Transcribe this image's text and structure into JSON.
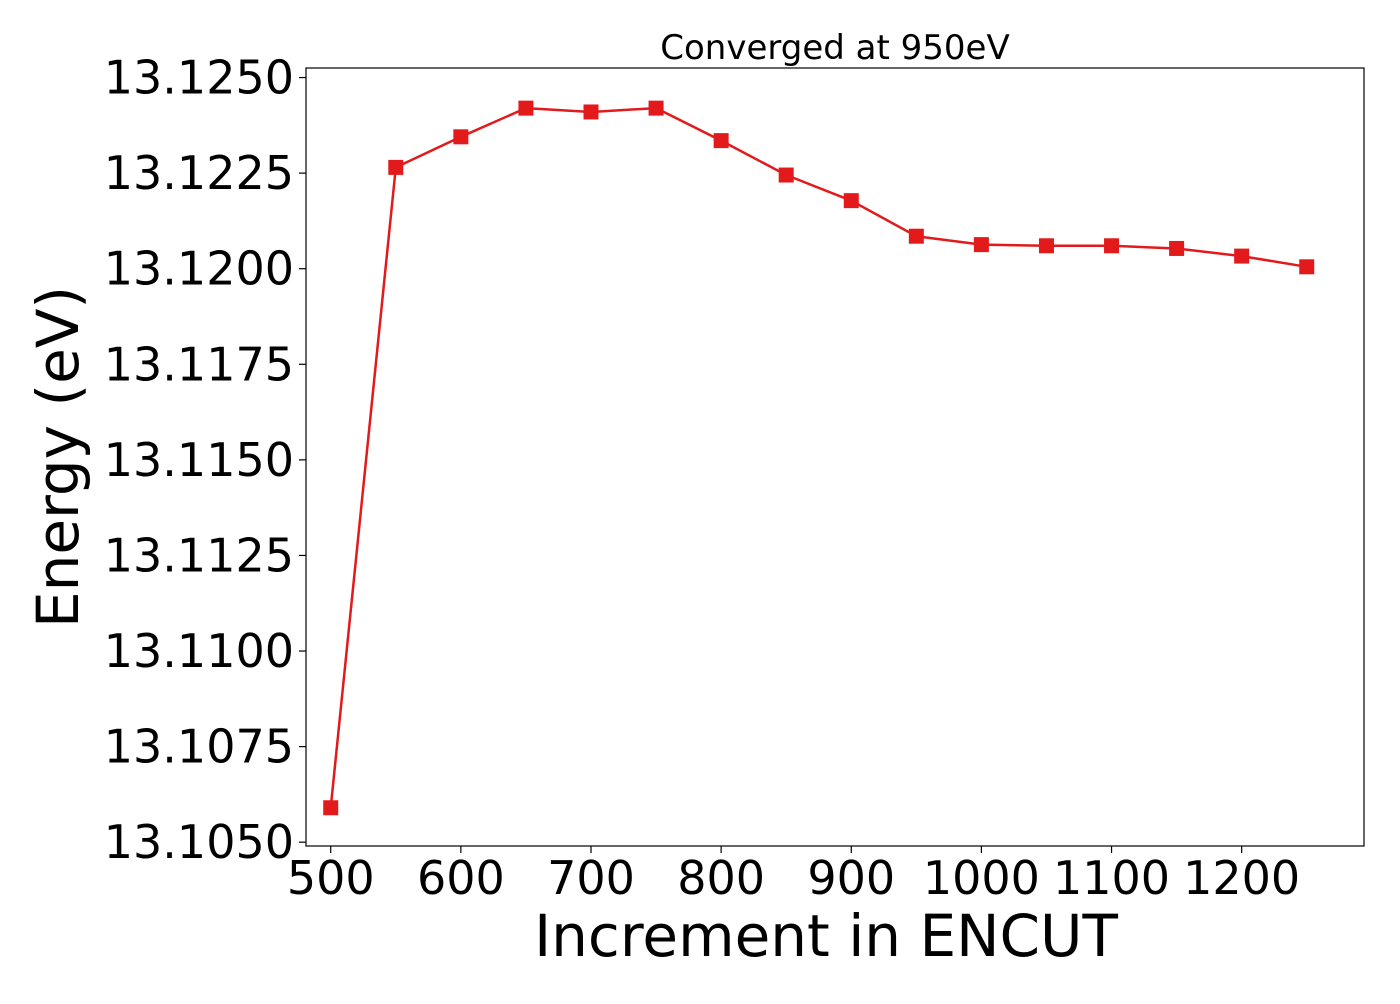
{
  "chart_data": {
    "type": "line",
    "title": "Converged at 950eV",
    "xlabel": "Increment in ENCUT",
    "ylabel": "Energy (eV)",
    "x": [
      500,
      550,
      600,
      650,
      700,
      750,
      800,
      850,
      900,
      950,
      1000,
      1050,
      1100,
      1150,
      1200,
      1250
    ],
    "series": [
      {
        "color": "#e31a1c",
        "marker": "square",
        "values": [
          13.1059,
          13.12265,
          13.12345,
          13.1242,
          13.1241,
          13.1242,
          13.12335,
          13.12245,
          13.12178,
          13.12085,
          13.12063,
          13.1206,
          13.1206,
          13.12053,
          13.12033,
          13.12005
        ]
      }
    ],
    "xticks": [
      500,
      600,
      700,
      800,
      900,
      1000,
      1100,
      1200
    ],
    "xtick_labels": [
      "500",
      "600",
      "700",
      "800",
      "900",
      "1000",
      "1100",
      "1200"
    ],
    "yticks": [
      13.105,
      13.1075,
      13.11,
      13.1125,
      13.115,
      13.1175,
      13.12,
      13.1225,
      13.125
    ],
    "ytick_labels": [
      "13.1050",
      "13.1075",
      "13.1100",
      "13.1125",
      "13.1150",
      "13.1175",
      "13.1200",
      "13.1225",
      "13.1250"
    ],
    "xlim": [
      481,
      1294
    ],
    "ylim": [
      13.1049,
      13.12525
    ],
    "grid": false,
    "legend": "none"
  }
}
